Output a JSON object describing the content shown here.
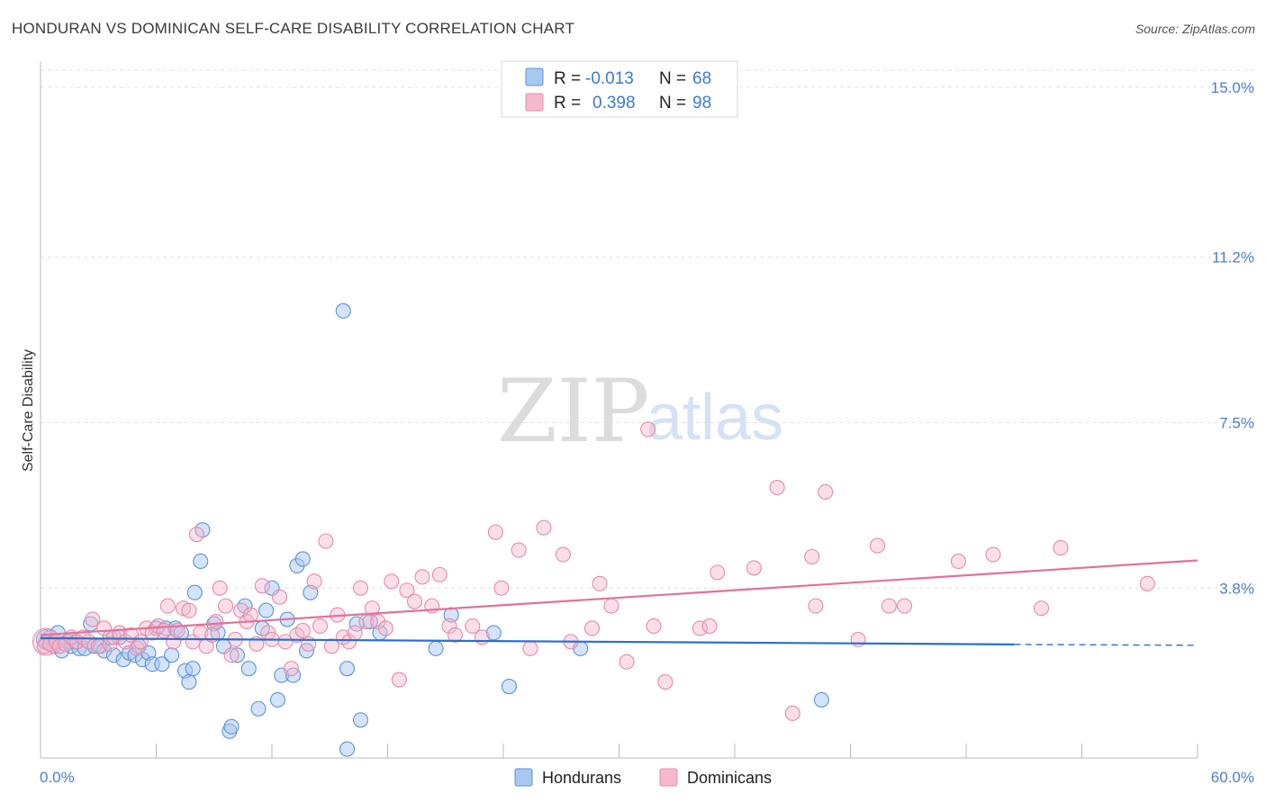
{
  "title": "HONDURAN VS DOMINICAN SELF-CARE DISABILITY CORRELATION CHART",
  "source": "Source: ZipAtlas.com",
  "watermark": {
    "zip": "ZIP",
    "atlas": "atlas"
  },
  "colors": {
    "hondurans_fill": "#a9c8f0",
    "hondurans_stroke": "#5b93dc",
    "hondurans_line": "#2a6fcf",
    "dominicans_fill": "#f5b9cc",
    "dominicans_stroke": "#e88aa8",
    "dominicans_line": "#e4709a",
    "grid": "#e2e2e2",
    "axis_text": "#4a7ed4"
  },
  "legend": {
    "row1": {
      "r_label": "R = ",
      "r_value": "-0.013",
      "n_label": "N = ",
      "n_value": "68"
    },
    "row2": {
      "r_label": "R = ",
      "r_value": "0.398",
      "n_label": "N = ",
      "n_value": "98"
    }
  },
  "bottom_legend": {
    "hondurans": "Hondurans",
    "dominicans": "Dominicans"
  },
  "chart_data": {
    "type": "scatter",
    "xlabel": "",
    "ylabel": "Self-Care Disability",
    "xlim": [
      0,
      60
    ],
    "ylim": [
      0,
      15
    ],
    "x_tick_labels": [
      "0.0%",
      "60.0%"
    ],
    "y_ticks": [
      3.8,
      7.5,
      11.2,
      15.0
    ],
    "y_tick_labels": [
      "3.8%",
      "7.5%",
      "11.2%",
      "15.0%"
    ],
    "grid": true,
    "series": [
      {
        "name": "Hondurans",
        "r": -0.013,
        "n": 68,
        "trend": {
          "x_start": 0,
          "y_start": 2.68,
          "x_end": 50.5,
          "y_end": 2.54,
          "dash_to_x": 60,
          "dash_y": 2.52
        },
        "points": [
          [
            0.3,
            2.6
          ],
          [
            0.5,
            2.7
          ],
          [
            0.7,
            2.5
          ],
          [
            0.9,
            2.8
          ],
          [
            1.1,
            2.4
          ],
          [
            1.4,
            2.6
          ],
          [
            1.6,
            2.5
          ],
          [
            1.8,
            2.6
          ],
          [
            2.0,
            2.45
          ],
          [
            2.3,
            2.45
          ],
          [
            2.6,
            3.0
          ],
          [
            2.8,
            2.5
          ],
          [
            3.1,
            2.5
          ],
          [
            3.3,
            2.4
          ],
          [
            3.6,
            2.7
          ],
          [
            3.8,
            2.3
          ],
          [
            4.1,
            2.7
          ],
          [
            4.3,
            2.2
          ],
          [
            4.6,
            2.35
          ],
          [
            4.9,
            2.3
          ],
          [
            5.1,
            2.5
          ],
          [
            5.3,
            2.2
          ],
          [
            5.6,
            2.35
          ],
          [
            5.8,
            2.1
          ],
          [
            6.0,
            2.9
          ],
          [
            6.3,
            2.1
          ],
          [
            6.5,
            2.9
          ],
          [
            6.8,
            2.3
          ],
          [
            7.0,
            2.9
          ],
          [
            7.3,
            2.8
          ],
          [
            7.5,
            1.95
          ],
          [
            7.7,
            1.7
          ],
          [
            7.9,
            2.0
          ],
          [
            8.0,
            3.7
          ],
          [
            8.3,
            4.4
          ],
          [
            8.4,
            5.1
          ],
          [
            9.0,
            3.0
          ],
          [
            9.2,
            2.8
          ],
          [
            9.5,
            2.5
          ],
          [
            9.8,
            0.6
          ],
          [
            9.9,
            0.7
          ],
          [
            10.2,
            2.3
          ],
          [
            10.6,
            3.4
          ],
          [
            10.8,
            2.0
          ],
          [
            11.3,
            1.1
          ],
          [
            11.5,
            2.9
          ],
          [
            11.7,
            3.3
          ],
          [
            12.0,
            3.8
          ],
          [
            12.3,
            1.3
          ],
          [
            12.5,
            1.85
          ],
          [
            12.8,
            3.1
          ],
          [
            13.1,
            1.85
          ],
          [
            13.3,
            4.3
          ],
          [
            13.6,
            4.45
          ],
          [
            13.8,
            2.4
          ],
          [
            14.0,
            3.7
          ],
          [
            15.7,
            10.0
          ],
          [
            15.9,
            0.2
          ],
          [
            15.9,
            2.0
          ],
          [
            16.4,
            3.0
          ],
          [
            16.6,
            0.85
          ],
          [
            17.1,
            3.05
          ],
          [
            17.6,
            2.8
          ],
          [
            20.5,
            2.45
          ],
          [
            21.3,
            3.2
          ],
          [
            23.5,
            2.8
          ],
          [
            24.3,
            1.6
          ],
          [
            28.0,
            2.45
          ],
          [
            40.5,
            1.3
          ]
        ]
      },
      {
        "name": "Dominicans",
        "r": 0.398,
        "n": 98,
        "trend": {
          "x_start": 0,
          "y_start": 2.75,
          "x_end": 60,
          "y_end": 4.42
        },
        "points": [
          [
            0.2,
            2.5
          ],
          [
            0.5,
            2.55
          ],
          [
            0.8,
            2.6
          ],
          [
            1.0,
            2.5
          ],
          [
            1.3,
            2.55
          ],
          [
            1.6,
            2.7
          ],
          [
            1.9,
            2.6
          ],
          [
            2.2,
            2.7
          ],
          [
            2.5,
            2.6
          ],
          [
            2.7,
            3.1
          ],
          [
            3.0,
            2.5
          ],
          [
            3.3,
            2.9
          ],
          [
            3.6,
            2.55
          ],
          [
            3.8,
            2.7
          ],
          [
            4.1,
            2.8
          ],
          [
            4.4,
            2.6
          ],
          [
            4.7,
            2.75
          ],
          [
            5.0,
            2.45
          ],
          [
            5.2,
            2.6
          ],
          [
            5.5,
            2.9
          ],
          [
            5.8,
            2.8
          ],
          [
            6.1,
            2.95
          ],
          [
            6.4,
            2.85
          ],
          [
            6.6,
            3.4
          ],
          [
            6.9,
            2.6
          ],
          [
            7.1,
            2.85
          ],
          [
            7.4,
            3.35
          ],
          [
            7.7,
            3.3
          ],
          [
            7.9,
            2.6
          ],
          [
            8.1,
            5.0
          ],
          [
            8.3,
            2.8
          ],
          [
            8.6,
            2.5
          ],
          [
            8.9,
            2.75
          ],
          [
            9.1,
            3.05
          ],
          [
            9.3,
            3.8
          ],
          [
            9.6,
            3.4
          ],
          [
            9.9,
            2.3
          ],
          [
            10.1,
            2.65
          ],
          [
            10.4,
            3.3
          ],
          [
            10.7,
            3.05
          ],
          [
            10.9,
            3.2
          ],
          [
            11.2,
            2.55
          ],
          [
            11.5,
            3.85
          ],
          [
            11.8,
            2.8
          ],
          [
            12.0,
            2.65
          ],
          [
            12.4,
            3.6
          ],
          [
            12.7,
            2.6
          ],
          [
            13.0,
            2.0
          ],
          [
            13.3,
            2.75
          ],
          [
            13.6,
            2.85
          ],
          [
            13.9,
            2.55
          ],
          [
            14.2,
            3.95
          ],
          [
            14.5,
            2.95
          ],
          [
            14.8,
            4.85
          ],
          [
            15.1,
            2.5
          ],
          [
            15.4,
            3.2
          ],
          [
            15.7,
            2.7
          ],
          [
            16.0,
            2.6
          ],
          [
            16.3,
            2.8
          ],
          [
            16.6,
            3.8
          ],
          [
            16.9,
            3.05
          ],
          [
            17.2,
            3.35
          ],
          [
            17.5,
            3.05
          ],
          [
            17.9,
            2.9
          ],
          [
            18.2,
            3.95
          ],
          [
            18.6,
            1.75
          ],
          [
            19.0,
            3.75
          ],
          [
            19.4,
            3.5
          ],
          [
            19.8,
            4.05
          ],
          [
            20.3,
            3.4
          ],
          [
            20.7,
            4.1
          ],
          [
            21.2,
            2.95
          ],
          [
            21.5,
            2.75
          ],
          [
            22.4,
            2.95
          ],
          [
            22.9,
            2.7
          ],
          [
            23.6,
            5.05
          ],
          [
            23.9,
            3.8
          ],
          [
            24.8,
            4.65
          ],
          [
            25.4,
            2.45
          ],
          [
            26.1,
            5.15
          ],
          [
            27.1,
            4.55
          ],
          [
            27.5,
            2.6
          ],
          [
            28.6,
            2.9
          ],
          [
            29.0,
            3.9
          ],
          [
            29.6,
            3.4
          ],
          [
            30.4,
            2.15
          ],
          [
            31.5,
            7.35
          ],
          [
            31.8,
            2.95
          ],
          [
            32.4,
            1.7
          ],
          [
            34.2,
            2.9
          ],
          [
            34.7,
            2.95
          ],
          [
            35.1,
            4.15
          ],
          [
            37.0,
            4.25
          ],
          [
            38.2,
            6.05
          ],
          [
            39.0,
            1.0
          ],
          [
            40.0,
            4.5
          ],
          [
            40.2,
            3.4
          ],
          [
            40.7,
            5.95
          ],
          [
            42.4,
            2.65
          ],
          [
            43.4,
            4.75
          ],
          [
            44.0,
            3.4
          ],
          [
            44.8,
            3.4
          ],
          [
            47.6,
            4.4
          ],
          [
            49.4,
            4.55
          ],
          [
            51.9,
            3.35
          ],
          [
            52.9,
            4.7
          ],
          [
            57.4,
            3.9
          ]
        ]
      }
    ]
  }
}
